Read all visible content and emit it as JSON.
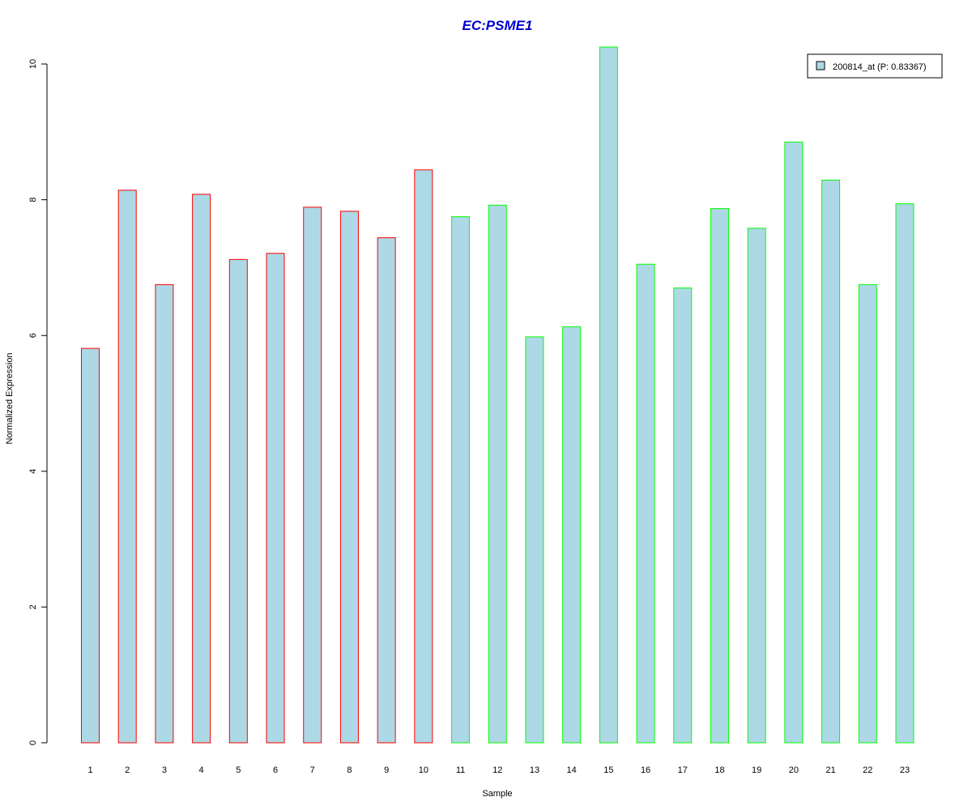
{
  "chart_data": {
    "type": "bar",
    "title": "EC:PSME1",
    "xlabel": "Sample",
    "ylabel": "Normalized Expression",
    "categories": [
      "1",
      "2",
      "3",
      "4",
      "5",
      "6",
      "7",
      "8",
      "9",
      "10",
      "11",
      "12",
      "13",
      "14",
      "15",
      "16",
      "17",
      "18",
      "19",
      "20",
      "21",
      "22",
      "23"
    ],
    "series": [
      {
        "name": "200814_at (P: 0.83367)",
        "values": [
          5.81,
          8.14,
          6.75,
          8.08,
          7.12,
          7.21,
          7.89,
          7.83,
          7.44,
          8.44,
          7.75,
          7.92,
          5.98,
          6.13,
          10.25,
          7.05,
          6.7,
          7.87,
          7.58,
          8.85,
          8.29,
          6.75,
          7.94
        ]
      }
    ],
    "groups": [
      "red",
      "red",
      "red",
      "red",
      "red",
      "red",
      "red",
      "red",
      "red",
      "red",
      "green",
      "green",
      "green",
      "green",
      "green",
      "green",
      "green",
      "green",
      "green",
      "green",
      "green",
      "green",
      "green"
    ],
    "yticks": [
      0,
      2,
      4,
      6,
      8,
      10
    ],
    "ylim": [
      0,
      10.25
    ],
    "legend_position": "top-right",
    "grid": false
  },
  "colors": {
    "bar_fill": "#add8e6",
    "group_red": "#ff0000",
    "group_green": "#00ff00",
    "title": "#0000cc",
    "axis": "#000000"
  }
}
